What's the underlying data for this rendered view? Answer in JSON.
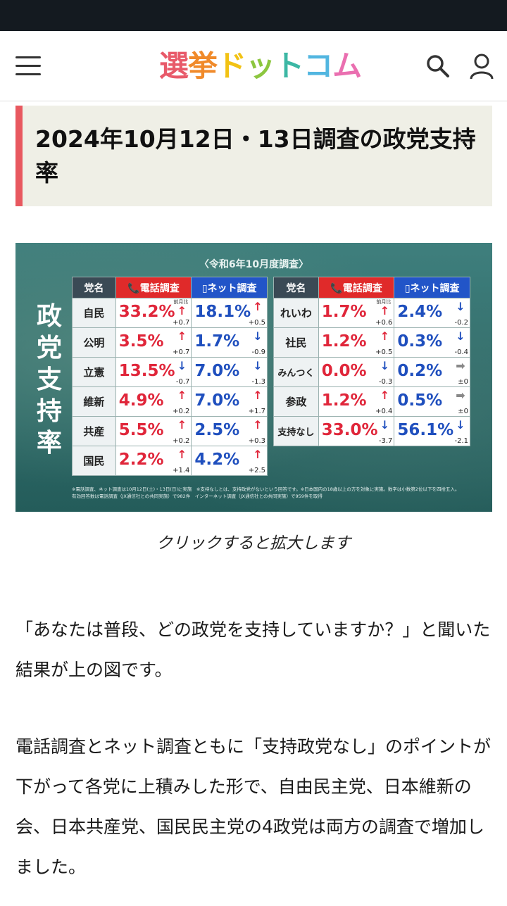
{
  "header": {
    "logo_chars": [
      {
        "char": "選",
        "color": "#e85a6a"
      },
      {
        "char": "挙",
        "color": "#f08a2a"
      },
      {
        "char": "ド",
        "color": "#f2c214"
      },
      {
        "char": "ッ",
        "color": "#8cc63f"
      },
      {
        "char": "ト",
        "color": "#3cb7a4"
      },
      {
        "char": "コ",
        "color": "#52b6e0"
      },
      {
        "char": "ム",
        "color": "#ea6fb0"
      }
    ],
    "menu_icon": "hamburger-icon",
    "search_icon": "search-icon",
    "user_icon": "user-icon"
  },
  "article": {
    "title": "2024年10月12日・13日調査の政党支持率",
    "caption": "クリックすると拡大します",
    "paragraphs": [
      "「あなたは普段、どの政党を支持していますか？」と聞いた結果が上の図です。",
      "電話調査とネット調査ともに「支持政党なし」のポイントが下がって各党に上積みした形で、自由民主党、日本維新の会、日本共産党、国民民主党の4政党は両方の調査で増加しました。"
    ]
  },
  "figure": {
    "header": "〈令和6年10月度調査〉",
    "vertical_title": "政党支持率",
    "col_party": "党名",
    "col_tel": "電話調査",
    "col_net": "ネット調査",
    "prev_label": "前月比",
    "left_rows": [
      {
        "party": "自民",
        "tel": "33.2%",
        "tel_dir": "up",
        "tel_chg": "+0.7",
        "net": "18.1%",
        "net_dir": "up",
        "net_chg": "+0.5"
      },
      {
        "party": "公明",
        "tel": "3.5%",
        "tel_dir": "up",
        "tel_chg": "+0.7",
        "net": "1.7%",
        "net_dir": "down",
        "net_chg": "-0.9"
      },
      {
        "party": "立憲",
        "tel": "13.5%",
        "tel_dir": "down",
        "tel_chg": "-0.7",
        "net": "7.0%",
        "net_dir": "down",
        "net_chg": "-1.3"
      },
      {
        "party": "維新",
        "tel": "4.9%",
        "tel_dir": "up",
        "tel_chg": "+0.2",
        "net": "7.0%",
        "net_dir": "up",
        "net_chg": "+1.7"
      },
      {
        "party": "共産",
        "tel": "5.5%",
        "tel_dir": "up",
        "tel_chg": "+0.2",
        "net": "2.5%",
        "net_dir": "up",
        "net_chg": "+0.3"
      },
      {
        "party": "国民",
        "tel": "2.2%",
        "tel_dir": "up",
        "tel_chg": "+1.4",
        "net": "4.2%",
        "net_dir": "up",
        "net_chg": "+2.5"
      }
    ],
    "right_rows": [
      {
        "party": "れいわ",
        "tel": "1.7%",
        "tel_dir": "up",
        "tel_chg": "+0.6",
        "net": "2.4%",
        "net_dir": "down",
        "net_chg": "-0.2"
      },
      {
        "party": "社民",
        "tel": "1.2%",
        "tel_dir": "up",
        "tel_chg": "+0.5",
        "net": "0.3%",
        "net_dir": "down",
        "net_chg": "-0.4"
      },
      {
        "party": "みんつく",
        "tel": "0.0%",
        "tel_dir": "down",
        "tel_chg": "-0.3",
        "net": "0.2%",
        "net_dir": "flat",
        "net_chg": "±0"
      },
      {
        "party": "参政",
        "tel": "1.2%",
        "tel_dir": "up",
        "tel_chg": "+0.4",
        "net": "0.5%",
        "net_dir": "flat",
        "net_chg": "±0"
      },
      {
        "party": "支持なし",
        "tel": "33.0%",
        "tel_dir": "down",
        "tel_chg": "-3.7",
        "net": "56.1%",
        "net_dir": "down",
        "net_chg": "-2.1"
      }
    ],
    "notes": [
      "※電話調査、ネット調査は10月12日(土)・13日(日)に実施　※支持なしとは、支持政党がないという回答です。※日本国内の18歳以上の方を対象に実施。数字は小数第2位以下を四捨五入。",
      "有効回答数は電話調査（JX通信社との共同実施）で982件　インターネット調査（JX通信社との共同実施）で959件を取得"
    ]
  }
}
